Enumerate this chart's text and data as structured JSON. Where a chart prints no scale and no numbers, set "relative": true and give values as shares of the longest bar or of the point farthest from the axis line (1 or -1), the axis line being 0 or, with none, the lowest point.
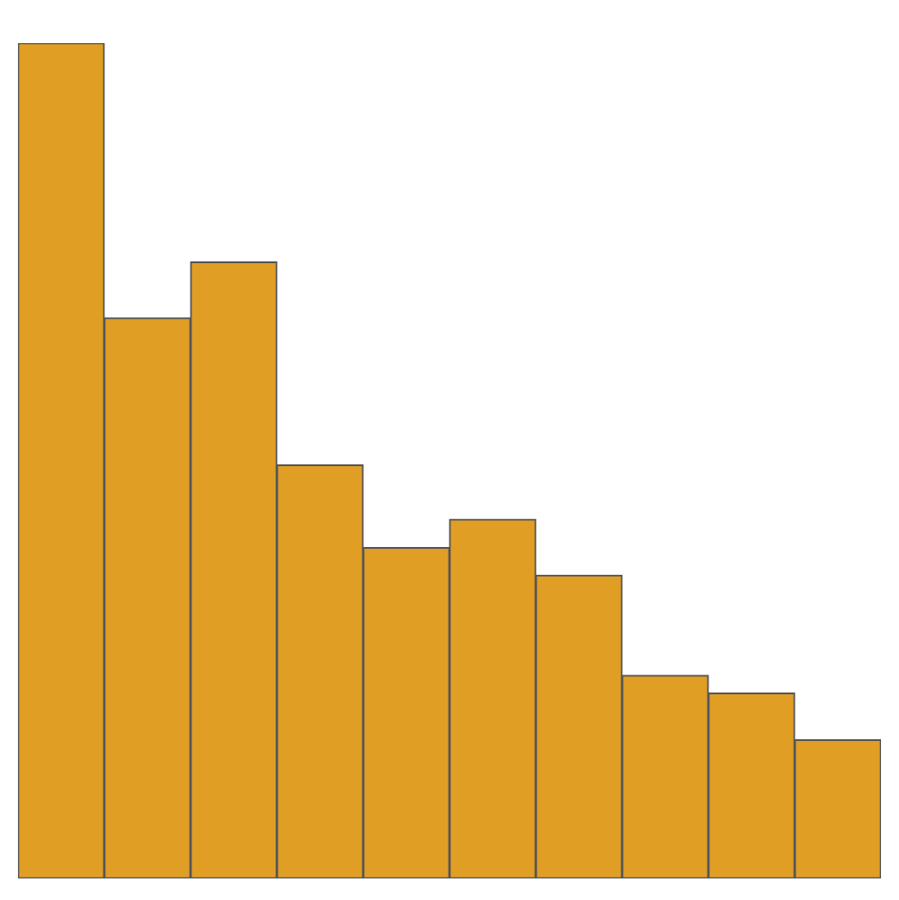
{
  "chart_data": {
    "type": "bar",
    "relative": true,
    "categories": [
      null,
      null,
      null,
      null,
      null,
      null,
      null,
      null,
      null,
      null
    ],
    "values": [
      1,
      0.671,
      0.738,
      0.495,
      0.396,
      0.43,
      0.363,
      0.243,
      0.222,
      0.166
    ],
    "color": "#e09e25"
  }
}
